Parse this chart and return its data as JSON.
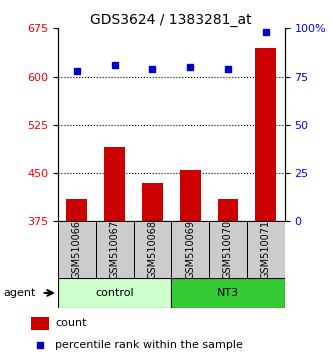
{
  "title": "GDS3624 / 1383281_at",
  "samples": [
    "GSM510066",
    "GSM510067",
    "GSM510068",
    "GSM510069",
    "GSM510070",
    "GSM510071"
  ],
  "counts": [
    410,
    490,
    435,
    455,
    410,
    645
  ],
  "percentiles": [
    78,
    81,
    79,
    80,
    79,
    98
  ],
  "groups": [
    "control",
    "control",
    "control",
    "NT3",
    "NT3",
    "NT3"
  ],
  "ylim_left": [
    375,
    675
  ],
  "yticks_left": [
    375,
    450,
    525,
    600,
    675
  ],
  "ylim_right": [
    0,
    100
  ],
  "yticks_right": [
    0,
    25,
    50,
    75,
    100
  ],
  "ytick_labels_right": [
    "0",
    "25",
    "50",
    "75",
    "100%"
  ],
  "bar_color": "#cc0000",
  "dot_color": "#0000cc",
  "control_color": "#ccffcc",
  "nt3_color": "#33cc33",
  "label_bg_color": "#cccccc",
  "bar_width": 0.55,
  "grid_color": "black",
  "legend_bar_label": "count",
  "legend_dot_label": "percentile rank within the sample",
  "agent_label": "agent",
  "background_color": "#ffffff"
}
